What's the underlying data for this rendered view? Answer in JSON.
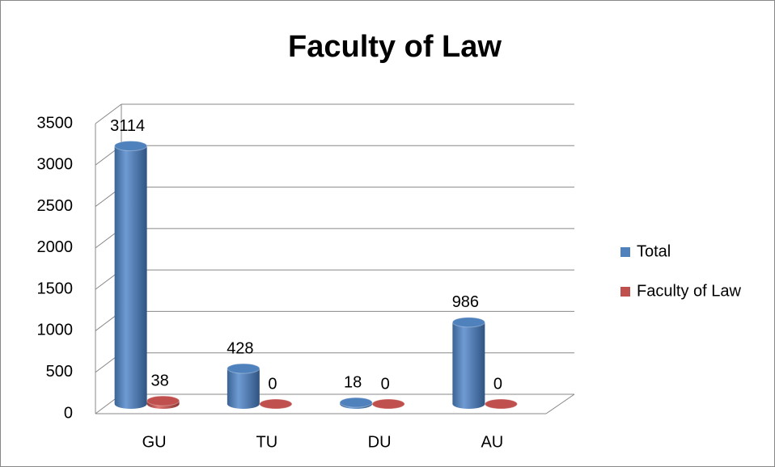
{
  "chart_data": {
    "type": "bar3d",
    "title": "Faculty of Law",
    "categories": [
      "GU",
      "TU",
      "DU",
      "AU"
    ],
    "series": [
      {
        "name": "Total",
        "color": "#4f81bd",
        "values": [
          3114,
          428,
          18,
          986
        ]
      },
      {
        "name": "Faculty of Law",
        "color": "#c0504d",
        "values": [
          38,
          0,
          0,
          0
        ]
      }
    ],
    "ylim": [
      0,
      3500
    ],
    "yticks": [
      0,
      500,
      1000,
      1500,
      2000,
      2500,
      3000,
      3500
    ],
    "grid": true,
    "legend": "right"
  }
}
